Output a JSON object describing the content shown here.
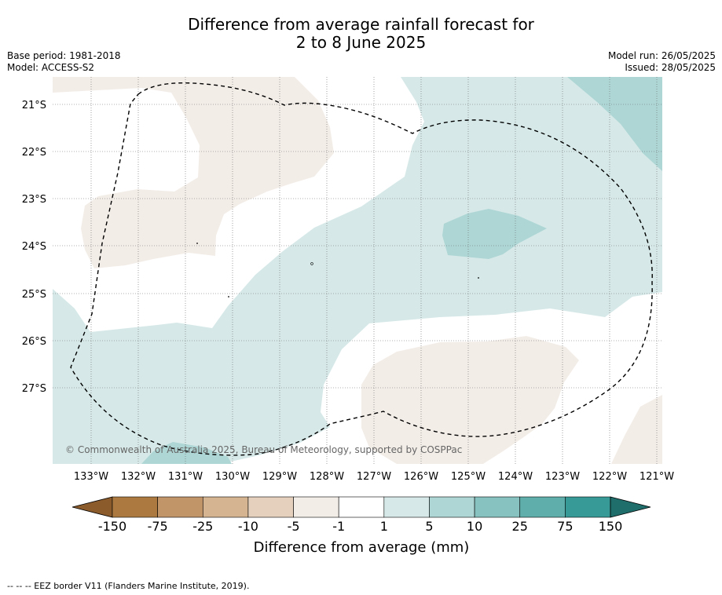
{
  "title_line1": "Difference from average rainfall forecast for",
  "title_line2": "2 to 8 June 2025",
  "base_period": "Base period: 1981-2018",
  "model": "Model: ACCESS-S2",
  "model_run": "Model run: 26/05/2025",
  "issued": "Issued: 28/05/2025",
  "copyright": "© Commonwealth of Australia 2025, Bureau of Meteorology, supported by COSPPac",
  "lat_labels": [
    "21°S",
    "22°S",
    "23°S",
    "24°S",
    "25°S",
    "26°S",
    "27°S"
  ],
  "lon_labels": [
    "133°W",
    "132°W",
    "131°W",
    "130°W",
    "129°W",
    "128°W",
    "127°W",
    "126°W",
    "125°W",
    "124°W",
    "123°W",
    "122°W",
    "121°W"
  ],
  "colorbar": {
    "ticks": [
      "-150",
      "-75",
      "-25",
      "-10",
      "-5",
      "-1",
      "1",
      "5",
      "10",
      "25",
      "75",
      "150"
    ],
    "colors": [
      "#ac7a41",
      "#c29569",
      "#d5b491",
      "#e4d0bd",
      "#f3ede8",
      "#ffffff",
      "#d6e9e8",
      "#aed6d5",
      "#87c2c0",
      "#5faeab",
      "#379a97"
    ],
    "under_color": "#8c5b2c",
    "over_color": "#1f6e6b",
    "title": "Difference from average (mm)"
  },
  "footnote": "--  --  -- EEZ border V11 (Flanders Marine Institute, 2019)."
}
